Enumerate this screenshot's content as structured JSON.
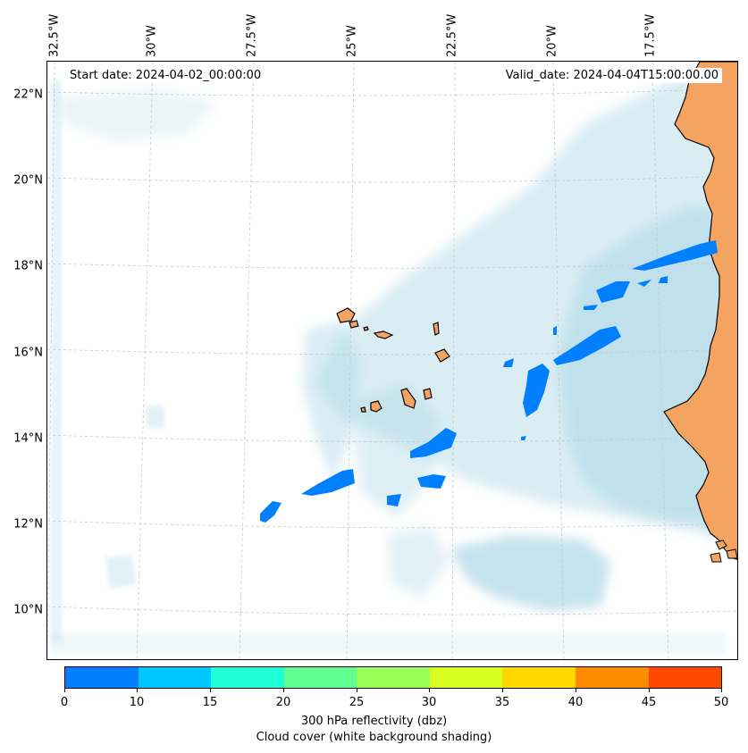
{
  "map": {
    "start_date": "Start date: 2024-04-02_00:00:00",
    "valid_date": "Valid_date: 2024-04-04T15:00:00.00",
    "lon_labels": [
      "32.5°W",
      "30°W",
      "27.5°W",
      "25°W",
      "22.5°W",
      "20°W",
      "17.5°W"
    ],
    "lat_labels": [
      "22°N",
      "20°N",
      "18°N",
      "16°N",
      "14°N",
      "12°N",
      "10°N"
    ],
    "land_color": "#f4a460",
    "cloud_color": "#add8e6",
    "reflectivity_color": "#0080ff"
  },
  "colorbar": {
    "ticks": [
      "0",
      "10",
      "15",
      "20",
      "25",
      "30",
      "35",
      "40",
      "45",
      "50"
    ],
    "colors": [
      "#0080ff",
      "#00c8ff",
      "#20ffd8",
      "#60ff90",
      "#98ff58",
      "#d8ff20",
      "#ffd800",
      "#ff8c00",
      "#ff4800"
    ],
    "label_line1": "300 hPa reflectivity (dbz)",
    "label_line2": "Cloud cover (white background shading)"
  }
}
